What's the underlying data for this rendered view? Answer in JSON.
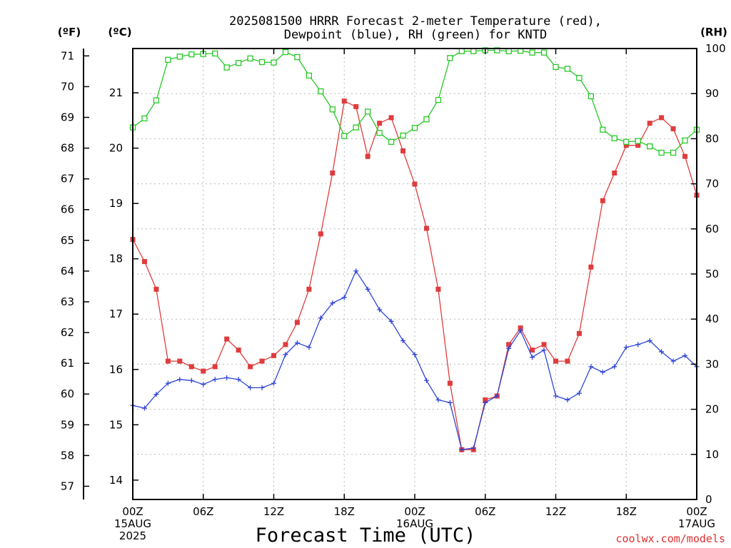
{
  "chart_data": {
    "type": "line",
    "title_lines": [
      "2025081500 HRRR Forecast 2-meter Temperature (red),",
      "Dewpoint (blue), RH (green) for KNTD"
    ],
    "xlabel": "Forecast Time (UTC)",
    "credit": "coolwx.com/models",
    "units": {
      "fahrenheit": "(ºF)",
      "celsius": "(ºC)",
      "rh": "(RH)"
    },
    "x_forecast_hours_range": [
      0,
      48
    ],
    "x_tick_labels": [
      {
        "hour": 0,
        "lines": [
          "00Z",
          "15AUG",
          "2025"
        ]
      },
      {
        "hour": 6,
        "lines": [
          "06Z"
        ]
      },
      {
        "hour": 12,
        "lines": [
          "12Z"
        ]
      },
      {
        "hour": 18,
        "lines": [
          "18Z"
        ]
      },
      {
        "hour": 24,
        "lines": [
          "00Z",
          "16AUG"
        ]
      },
      {
        "hour": 30,
        "lines": [
          "06Z"
        ]
      },
      {
        "hour": 36,
        "lines": [
          "12Z"
        ]
      },
      {
        "hour": 42,
        "lines": [
          "18Z"
        ]
      },
      {
        "hour": 48,
        "lines": [
          "00Z",
          "17AUG"
        ]
      }
    ],
    "y_celsius": {
      "ylim": [
        13.65,
        21.8
      ],
      "ticks": [
        "14",
        "15",
        "16",
        "17",
        "18",
        "19",
        "20",
        "21"
      ]
    },
    "y_fahrenheit": {
      "ylim": [
        56.57,
        71.24
      ],
      "ticks": [
        "57",
        "58",
        "59",
        "60",
        "61",
        "62",
        "63",
        "64",
        "65",
        "66",
        "67",
        "68",
        "69",
        "70",
        "71"
      ]
    },
    "y_rh": {
      "ylim": [
        0,
        100
      ],
      "ticks": [
        "0",
        "10",
        "20",
        "30",
        "40",
        "50",
        "60",
        "70",
        "80",
        "90",
        "100"
      ]
    },
    "grid": true,
    "series": [
      {
        "color": "#e03c3c",
        "marker": "filled-square",
        "axis": "celsius",
        "values": [
          18.35,
          17.95,
          17.45,
          16.15,
          16.15,
          16.05,
          15.97,
          16.05,
          16.55,
          16.35,
          16.05,
          16.15,
          16.25,
          16.45,
          16.85,
          17.45,
          18.45,
          19.55,
          20.85,
          20.75,
          19.85,
          20.45,
          20.55,
          19.95,
          19.35,
          18.55,
          17.45,
          15.75,
          14.55,
          14.55,
          15.45,
          15.52,
          16.45,
          16.75,
          16.35,
          16.45,
          16.15,
          16.15,
          16.65,
          17.85,
          19.05,
          19.55,
          20.05,
          20.05,
          20.45,
          20.55,
          20.35,
          19.85,
          19.15
        ]
      },
      {
        "color": "#2f45d8",
        "marker": "plus",
        "axis": "celsius",
        "values": [
          15.35,
          15.3,
          15.55,
          15.75,
          15.82,
          15.8,
          15.73,
          15.82,
          15.85,
          15.82,
          15.67,
          15.67,
          15.75,
          16.27,
          16.48,
          16.4,
          16.93,
          17.2,
          17.3,
          17.78,
          17.45,
          17.08,
          16.87,
          16.52,
          16.27,
          15.8,
          15.45,
          15.4,
          14.55,
          14.58,
          15.4,
          15.52,
          16.38,
          16.7,
          16.22,
          16.35,
          15.52,
          15.45,
          15.57,
          16.05,
          15.95,
          16.05,
          16.4,
          16.45,
          16.52,
          16.32,
          16.15,
          16.25,
          16.05
        ]
      },
      {
        "color": "#28c828",
        "marker": "hollow-square",
        "axis": "rh",
        "values": [
          82.5,
          84.5,
          88.5,
          97.5,
          98.2,
          98.7,
          98.8,
          98.9,
          95.8,
          96.8,
          97.8,
          97.0,
          96.9,
          99.2,
          98.1,
          94.0,
          90.5,
          86.5,
          80.6,
          82.5,
          86.0,
          81.3,
          79.3,
          80.7,
          82.4,
          84.3,
          88.6,
          97.9,
          99.4,
          99.4,
          99.6,
          99.6,
          99.4,
          99.5,
          99.1,
          99.1,
          95.9,
          95.5,
          93.5,
          89.4,
          82.0,
          80.1,
          79.3,
          79.5,
          78.3,
          76.9,
          76.9,
          79.6,
          82.0
        ]
      }
    ]
  }
}
